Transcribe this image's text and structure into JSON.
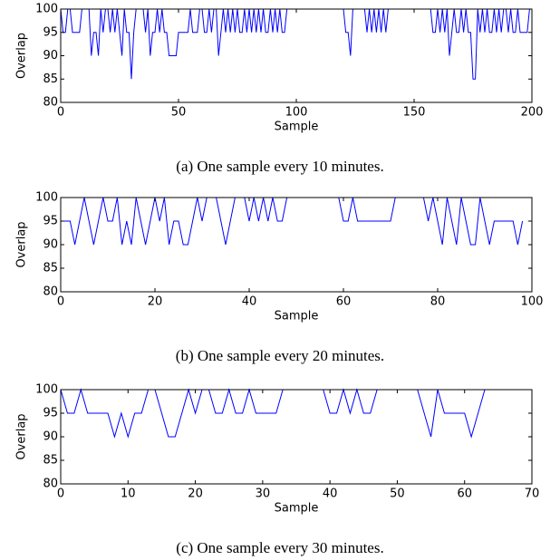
{
  "chart_data": [
    {
      "type": "line",
      "caption": "(a) One sample every 10 minutes.",
      "xlabel": "Sample",
      "ylabel": "Overlap",
      "color": "#0000ff",
      "xlim": [
        0,
        200
      ],
      "xticks": [
        0,
        50,
        100,
        150,
        200
      ],
      "ylim": [
        80,
        100
      ],
      "yticks": [
        80,
        85,
        90,
        95,
        100
      ],
      "values": [
        100,
        95,
        95,
        100,
        100,
        95,
        95,
        95,
        95,
        100,
        100,
        100,
        100,
        90,
        95,
        95,
        90,
        100,
        95,
        100,
        100,
        95,
        100,
        95,
        100,
        95,
        90,
        100,
        95,
        95,
        85,
        95,
        100,
        100,
        100,
        100,
        95,
        100,
        90,
        95,
        95,
        100,
        95,
        100,
        95,
        95,
        90,
        90,
        90,
        90,
        95,
        95,
        95,
        95,
        95,
        100,
        95,
        95,
        95,
        100,
        100,
        95,
        95,
        100,
        95,
        100,
        100,
        90,
        95,
        100,
        95,
        100,
        95,
        100,
        95,
        100,
        95,
        95,
        100,
        95,
        100,
        95,
        100,
        95,
        100,
        95,
        100,
        95,
        95,
        100,
        95,
        100,
        95,
        100,
        95,
        95,
        100,
        100,
        100,
        100,
        100,
        100,
        100,
        100,
        100,
        100,
        100,
        100,
        100,
        100,
        100,
        100,
        100,
        100,
        100,
        100,
        100,
        100,
        100,
        100,
        100,
        95,
        95,
        90,
        100,
        100,
        100,
        100,
        100,
        100,
        95,
        100,
        95,
        100,
        95,
        100,
        95,
        100,
        95,
        100,
        100,
        100,
        100,
        100,
        100,
        100,
        100,
        100,
        100,
        100,
        100,
        100,
        100,
        100,
        100,
        100,
        100,
        100,
        95,
        95,
        100,
        95,
        100,
        95,
        100,
        90,
        95,
        100,
        95,
        95,
        100,
        95,
        100,
        95,
        95,
        85,
        85,
        100,
        95,
        100,
        95,
        100,
        95,
        95,
        100,
        95,
        100,
        95,
        100,
        100,
        95,
        100,
        95,
        95,
        100,
        95,
        95,
        95,
        95,
        100
      ]
    },
    {
      "type": "line",
      "caption": "(b) One sample every 20 minutes.",
      "xlabel": "Sample",
      "ylabel": "Overlap",
      "color": "#0000ff",
      "xlim": [
        0,
        100
      ],
      "xticks": [
        0,
        20,
        40,
        60,
        80,
        100
      ],
      "ylim": [
        80,
        100
      ],
      "yticks": [
        80,
        85,
        90,
        95,
        100
      ],
      "values": [
        95,
        95,
        95,
        90,
        95,
        100,
        95,
        90,
        95,
        100,
        95,
        95,
        100,
        90,
        95,
        90,
        100,
        95,
        90,
        95,
        100,
        95,
        100,
        90,
        95,
        95,
        90,
        90,
        95,
        100,
        95,
        100,
        100,
        100,
        95,
        90,
        95,
        100,
        100,
        100,
        95,
        100,
        95,
        100,
        95,
        100,
        95,
        95,
        100,
        100,
        100,
        100,
        100,
        100,
        100,
        100,
        100,
        100,
        100,
        100,
        95,
        95,
        100,
        95,
        95,
        95,
        95,
        95,
        95,
        95,
        95,
        100,
        100,
        100,
        100,
        100,
        100,
        100,
        95,
        100,
        95,
        90,
        100,
        95,
        90,
        100,
        95,
        90,
        90,
        100,
        95,
        90,
        95,
        95,
        95,
        95,
        95,
        90,
        95
      ]
    },
    {
      "type": "line",
      "caption": "(c) One sample every 30 minutes.",
      "xlabel": "Sample",
      "ylabel": "Overlap",
      "color": "#0000ff",
      "xlim": [
        0,
        70
      ],
      "xticks": [
        0,
        10,
        20,
        30,
        40,
        50,
        60,
        70
      ],
      "ylim": [
        80,
        100
      ],
      "yticks": [
        80,
        85,
        90,
        95,
        100
      ],
      "values": [
        100,
        95,
        95,
        100,
        95,
        95,
        95,
        95,
        90,
        95,
        90,
        95,
        95,
        100,
        100,
        95,
        90,
        90,
        95,
        100,
        95,
        100,
        100,
        95,
        95,
        100,
        95,
        95,
        100,
        95,
        95,
        95,
        95,
        100,
        100,
        100,
        100,
        100,
        100,
        100,
        95,
        95,
        100,
        95,
        100,
        95,
        95,
        100,
        100,
        100,
        100,
        100,
        100,
        100,
        95,
        90,
        100,
        95,
        95,
        95,
        95,
        90,
        95,
        100,
        100,
        100
      ]
    }
  ]
}
